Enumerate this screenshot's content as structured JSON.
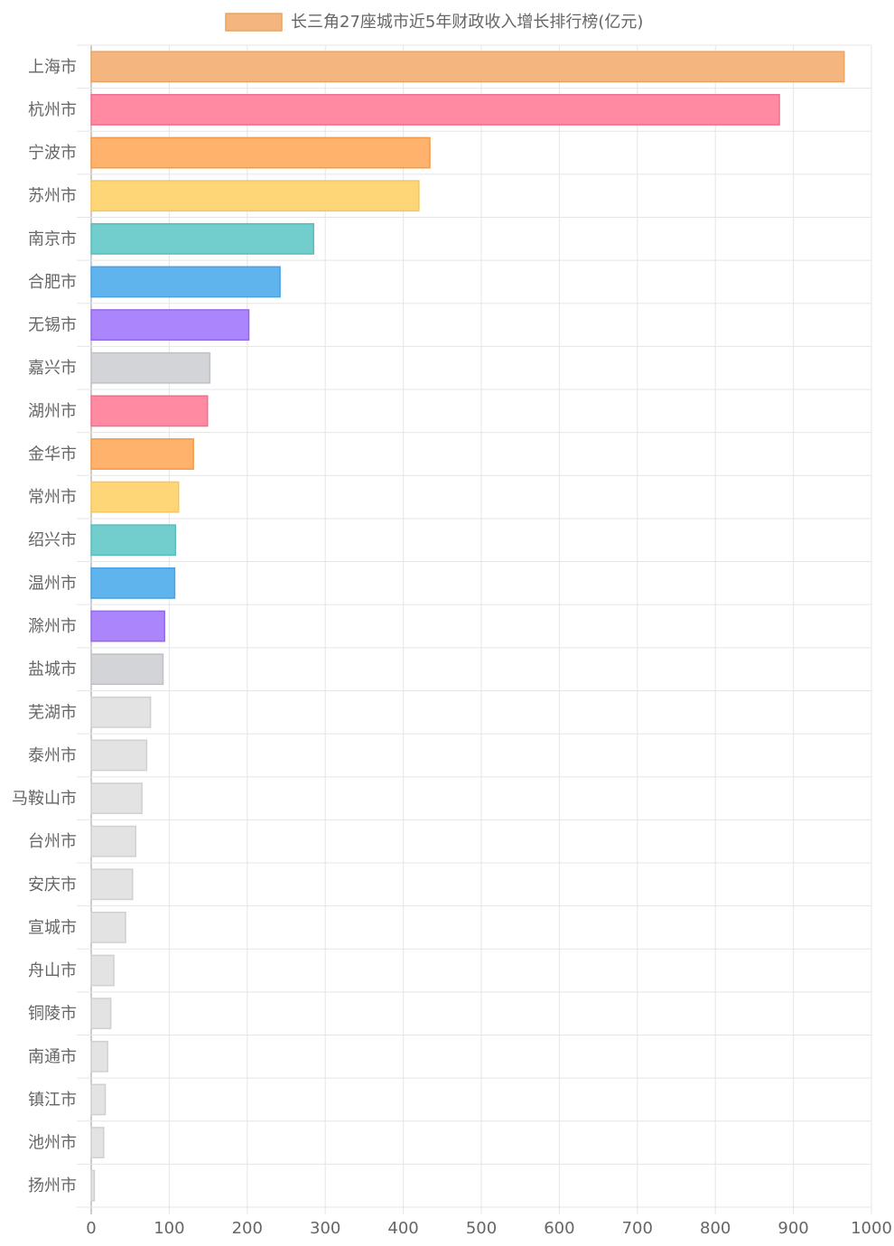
{
  "chart_data": {
    "type": "bar",
    "orientation": "horizontal",
    "title": "",
    "legend": {
      "label": "长三角27座城市近5年财政收入增长排行榜(亿元)",
      "placement": "top-center",
      "swatch_color": "#f5b57f"
    },
    "categories": [
      "上海市",
      "杭州市",
      "宁波市",
      "苏州市",
      "南京市",
      "合肥市",
      "无锡市",
      "嘉兴市",
      "湖州市",
      "金华市",
      "常州市",
      "绍兴市",
      "温州市",
      "滁州市",
      "盐城市",
      "芜湖市",
      "泰州市",
      "马鞍山市",
      "台州市",
      "安庆市",
      "宣城市",
      "舟山市",
      "铜陵市",
      "南通市",
      "镇江市",
      "池州市",
      "扬州市"
    ],
    "values": [
      965,
      882,
      434,
      420,
      285,
      242,
      202,
      152,
      149,
      131,
      112,
      108,
      107,
      94,
      92,
      76,
      71,
      65,
      57,
      53,
      44,
      29,
      25,
      21,
      18,
      16,
      4
    ],
    "colors": [
      "#f5b57f",
      "#ff8aa2",
      "#ffb26b",
      "#ffd677",
      "#72cdcd",
      "#5fb4ee",
      "#ab85fb",
      "#d3d4d8",
      "#ff8aa2",
      "#ffb26b",
      "#ffd677",
      "#72cdcd",
      "#5fb4ee",
      "#ab85fb",
      "#d3d4d8",
      "#e3e3e3",
      "#e3e3e3",
      "#e3e3e3",
      "#e3e3e3",
      "#e3e3e3",
      "#e3e3e3",
      "#e3e3e3",
      "#e3e3e3",
      "#e3e3e3",
      "#e3e3e3",
      "#e3e3e3",
      "#e3e3e3"
    ],
    "border_colors": [
      "#e9a463",
      "#f06f8d",
      "#f4994a",
      "#f5c660",
      "#5cbcbc",
      "#4aa1e0",
      "#9469ec",
      "#c0c1c5",
      "#f06f8d",
      "#f4994a",
      "#f5c660",
      "#5cbcbc",
      "#4aa1e0",
      "#9469ec",
      "#c0c1c5",
      "#d0d0d0",
      "#d0d0d0",
      "#d0d0d0",
      "#d0d0d0",
      "#d0d0d0",
      "#d0d0d0",
      "#d0d0d0",
      "#d0d0d0",
      "#d0d0d0",
      "#d0d0d0",
      "#d0d0d0",
      "#d0d0d0"
    ],
    "xlim": [
      0,
      1000
    ],
    "xticks": [
      "0",
      "100",
      "200",
      "300",
      "400",
      "500",
      "600",
      "700",
      "800",
      "900",
      "1000"
    ],
    "grid": true
  }
}
